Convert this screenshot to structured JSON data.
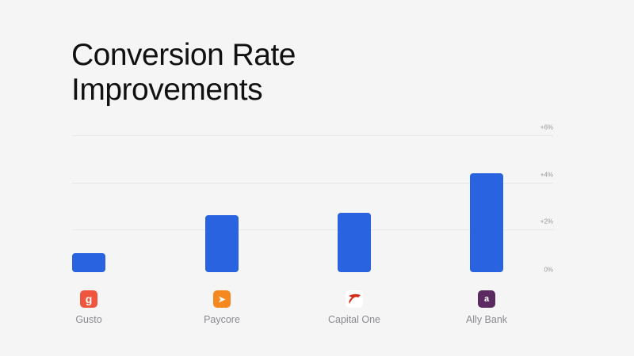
{
  "title": "Conversion Rate Improvements",
  "title_line1": "Conversion Rate",
  "title_line2": "Improvements",
  "colors": {
    "bar": "#2963e0",
    "background": "#f5f5f6",
    "grid": "#e8e8ea",
    "tick_text": "#9a9a9e"
  },
  "y_ticks": [
    "+6%",
    "+4%",
    "+2%",
    "0%"
  ],
  "categories": [
    {
      "name": "Gusto",
      "value": 1.0,
      "icon": "gusto-logo-icon",
      "glyph": "g",
      "icon_color": "#f0553f"
    },
    {
      "name": "Paycore",
      "value": 2.6,
      "icon": "paycore-logo-icon",
      "glyph": "➤",
      "icon_color": "#f5891f"
    },
    {
      "name": "Capital One",
      "value": 2.7,
      "icon": "capital-one-logo-icon",
      "glyph": "",
      "icon_color": "#ffffff"
    },
    {
      "name": "Ally Bank",
      "value": 4.4,
      "icon": "ally-bank-logo-icon",
      "glyph": "a",
      "icon_color": "#5b2a60"
    }
  ],
  "chart_data": {
    "type": "bar",
    "title": "Conversion Rate Improvements",
    "categories": [
      "Gusto",
      "Paycore",
      "Capital One",
      "Ally Bank"
    ],
    "values": [
      1.0,
      2.6,
      2.7,
      4.4
    ],
    "xlabel": "",
    "ylabel": "",
    "ylim": [
      0,
      6
    ],
    "y_ticks": [
      "0%",
      "+2%",
      "+4%",
      "+6%"
    ],
    "y_axis_position": "right",
    "grid": true,
    "legend": null,
    "unit": "%"
  }
}
